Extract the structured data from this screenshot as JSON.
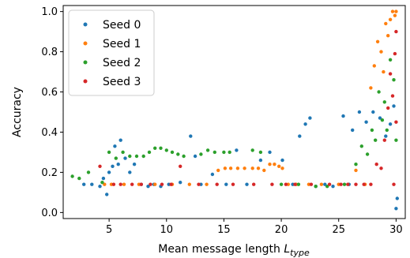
{
  "chart_data": {
    "type": "scatter",
    "title": "",
    "xlabel": "Mean message length ",
    "xlabel_symbol": "L",
    "xlabel_subscript": "type",
    "ylabel": "Accuracy",
    "xlim": [
      1.0,
      30.8
    ],
    "ylim": [
      -0.03,
      1.03
    ],
    "x_ticks": [
      5,
      10,
      15,
      20,
      25,
      30
    ],
    "y_ticks": [
      0.0,
      0.2,
      0.4,
      0.6,
      0.8,
      1.0
    ],
    "x_tick_labels": [
      "5",
      "10",
      "15",
      "20",
      "25",
      "30"
    ],
    "y_tick_labels": [
      "0.0",
      "0.2",
      "0.4",
      "0.6",
      "0.8",
      "1.0"
    ],
    "grid": false,
    "legend_position": "top-left",
    "series": [
      {
        "name": "Seed 0",
        "color": "#1f77b4",
        "points": [
          [
            2.8,
            0.14
          ],
          [
            3.5,
            0.14
          ],
          [
            4.2,
            0.13
          ],
          [
            4.5,
            0.17
          ],
          [
            4.8,
            0.09
          ],
          [
            5.0,
            0.2
          ],
          [
            5.3,
            0.23
          ],
          [
            5.5,
            0.33
          ],
          [
            5.8,
            0.24
          ],
          [
            6.0,
            0.36
          ],
          [
            6.4,
            0.27
          ],
          [
            6.8,
            0.2
          ],
          [
            7.2,
            0.24
          ],
          [
            7.8,
            0.14
          ],
          [
            8.4,
            0.13
          ],
          [
            8.9,
            0.14
          ],
          [
            9.5,
            0.13
          ],
          [
            10.2,
            0.14
          ],
          [
            11.2,
            0.15
          ],
          [
            12.1,
            0.38
          ],
          [
            12.5,
            0.28
          ],
          [
            13.0,
            0.14
          ],
          [
            14.0,
            0.19
          ],
          [
            15.2,
            0.14
          ],
          [
            16.1,
            0.31
          ],
          [
            17.0,
            0.14
          ],
          [
            18.2,
            0.26
          ],
          [
            19.0,
            0.3
          ],
          [
            20.1,
            0.26
          ],
          [
            21.0,
            0.14
          ],
          [
            21.6,
            0.38
          ],
          [
            22.1,
            0.44
          ],
          [
            22.5,
            0.47
          ],
          [
            23.0,
            0.13
          ],
          [
            23.8,
            0.14
          ],
          [
            24.5,
            0.13
          ],
          [
            25.4,
            0.48
          ],
          [
            25.9,
            0.14
          ],
          [
            26.2,
            0.41
          ],
          [
            26.8,
            0.5
          ],
          [
            27.4,
            0.45
          ],
          [
            28.0,
            0.5
          ],
          [
            28.6,
            0.47
          ],
          [
            29.1,
            0.38
          ],
          [
            29.5,
            0.44
          ],
          [
            29.8,
            0.53
          ],
          [
            30.0,
            0.02
          ],
          [
            30.1,
            0.07
          ]
        ]
      },
      {
        "name": "Seed 1",
        "color": "#ff7f0e",
        "points": [
          [
            4.6,
            0.14
          ],
          [
            5.2,
            0.14
          ],
          [
            6.3,
            0.14
          ],
          [
            7.6,
            0.14
          ],
          [
            9.0,
            0.14
          ],
          [
            10.5,
            0.14
          ],
          [
            12.0,
            0.14
          ],
          [
            13.5,
            0.14
          ],
          [
            14.5,
            0.21
          ],
          [
            15.1,
            0.22
          ],
          [
            15.6,
            0.22
          ],
          [
            16.2,
            0.22
          ],
          [
            16.8,
            0.22
          ],
          [
            17.5,
            0.22
          ],
          [
            18.0,
            0.22
          ],
          [
            18.5,
            0.21
          ],
          [
            19.0,
            0.24
          ],
          [
            19.4,
            0.24
          ],
          [
            19.8,
            0.23
          ],
          [
            20.1,
            0.22
          ],
          [
            20.6,
            0.14
          ],
          [
            21.3,
            0.14
          ],
          [
            22.4,
            0.14
          ],
          [
            23.5,
            0.14
          ],
          [
            25.0,
            0.14
          ],
          [
            26.5,
            0.21
          ],
          [
            27.3,
            0.14
          ],
          [
            27.8,
            0.62
          ],
          [
            28.1,
            0.73
          ],
          [
            28.4,
            0.85
          ],
          [
            28.7,
            0.8
          ],
          [
            28.9,
            0.7
          ],
          [
            29.1,
            0.94
          ],
          [
            29.3,
            0.88
          ],
          [
            29.5,
            0.96
          ],
          [
            29.7,
            1.0
          ],
          [
            29.9,
            0.98
          ],
          [
            30.0,
            1.0
          ]
        ]
      },
      {
        "name": "Seed 2",
        "color": "#2ca02c",
        "points": [
          [
            1.8,
            0.18
          ],
          [
            2.4,
            0.17
          ],
          [
            3.2,
            0.2
          ],
          [
            4.4,
            0.15
          ],
          [
            5.0,
            0.3
          ],
          [
            5.6,
            0.27
          ],
          [
            6.2,
            0.3
          ],
          [
            6.8,
            0.28
          ],
          [
            7.4,
            0.28
          ],
          [
            8.0,
            0.28
          ],
          [
            8.5,
            0.3
          ],
          [
            9.0,
            0.32
          ],
          [
            9.5,
            0.32
          ],
          [
            10.0,
            0.31
          ],
          [
            10.5,
            0.3
          ],
          [
            11.0,
            0.29
          ],
          [
            11.5,
            0.28
          ],
          [
            13.0,
            0.29
          ],
          [
            13.6,
            0.31
          ],
          [
            14.2,
            0.3
          ],
          [
            15.0,
            0.3
          ],
          [
            15.5,
            0.3
          ],
          [
            17.5,
            0.31
          ],
          [
            18.2,
            0.3
          ],
          [
            20.0,
            0.14
          ],
          [
            21.5,
            0.14
          ],
          [
            23.0,
            0.13
          ],
          [
            24.0,
            0.13
          ],
          [
            25.5,
            0.14
          ],
          [
            26.5,
            0.24
          ],
          [
            27.0,
            0.33
          ],
          [
            27.5,
            0.29
          ],
          [
            27.9,
            0.41
          ],
          [
            28.2,
            0.36
          ],
          [
            28.5,
            0.6
          ],
          [
            28.8,
            0.46
          ],
          [
            29.0,
            0.55
          ],
          [
            29.2,
            0.41
          ],
          [
            29.5,
            0.76
          ],
          [
            29.8,
            0.66
          ],
          [
            30.0,
            0.36
          ]
        ]
      },
      {
        "name": "Seed 3",
        "color": "#d62728",
        "points": [
          [
            4.2,
            0.23
          ],
          [
            5.4,
            0.14
          ],
          [
            6.0,
            0.14
          ],
          [
            7.0,
            0.14
          ],
          [
            7.8,
            0.14
          ],
          [
            8.6,
            0.14
          ],
          [
            9.6,
            0.14
          ],
          [
            10.4,
            0.14
          ],
          [
            11.2,
            0.23
          ],
          [
            12.8,
            0.14
          ],
          [
            14.4,
            0.14
          ],
          [
            15.8,
            0.14
          ],
          [
            17.6,
            0.14
          ],
          [
            19.2,
            0.14
          ],
          [
            20.4,
            0.14
          ],
          [
            21.2,
            0.14
          ],
          [
            22.6,
            0.14
          ],
          [
            24.2,
            0.14
          ],
          [
            25.2,
            0.14
          ],
          [
            25.8,
            0.14
          ],
          [
            26.5,
            0.14
          ],
          [
            27.2,
            0.14
          ],
          [
            27.8,
            0.14
          ],
          [
            28.3,
            0.24
          ],
          [
            28.7,
            0.22
          ],
          [
            29.0,
            0.36
          ],
          [
            29.3,
            0.52
          ],
          [
            29.5,
            0.69
          ],
          [
            29.7,
            0.58
          ],
          [
            29.9,
            0.79
          ],
          [
            30.0,
            0.9
          ],
          [
            30.0,
            0.45
          ],
          [
            29.8,
            0.14
          ]
        ]
      }
    ]
  }
}
